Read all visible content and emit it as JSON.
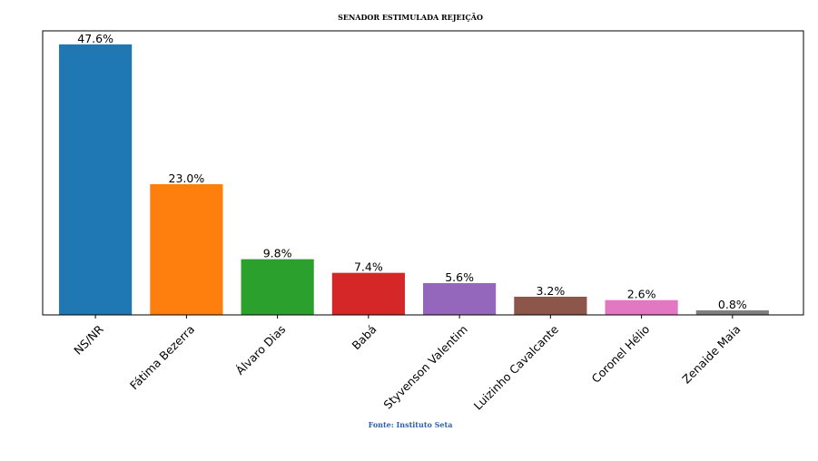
{
  "chart_data": {
    "type": "bar",
    "title": "SENADOR ESTIMULADA REJEIÇÃO",
    "xlabel": "",
    "ylabel": "",
    "categories": [
      "NS/NR",
      "Fátima Bezerra",
      "Álvaro Dias",
      "Babá",
      "Styvenson Valentim",
      "Luizinho Cavalcante",
      "Coronel Hélio",
      "Zenaide Maia"
    ],
    "values": [
      47.6,
      23.0,
      9.8,
      7.4,
      5.6,
      3.2,
      2.6,
      0.8
    ],
    "value_labels": [
      "47.6%",
      "23.0%",
      "9.8%",
      "7.4%",
      "5.6%",
      "3.2%",
      "2.6%",
      "0.8%"
    ],
    "colors": [
      "#1f77b4",
      "#ff7f0e",
      "#2ca02c",
      "#d62728",
      "#9467bd",
      "#8c564b",
      "#e377c2",
      "#7f7f7f"
    ],
    "ylim": [
      0,
      49.98
    ],
    "yaxis_visible": false,
    "grid": false,
    "source": "Fonte: Instituto Seta",
    "source_color": "#2e5fa8"
  }
}
